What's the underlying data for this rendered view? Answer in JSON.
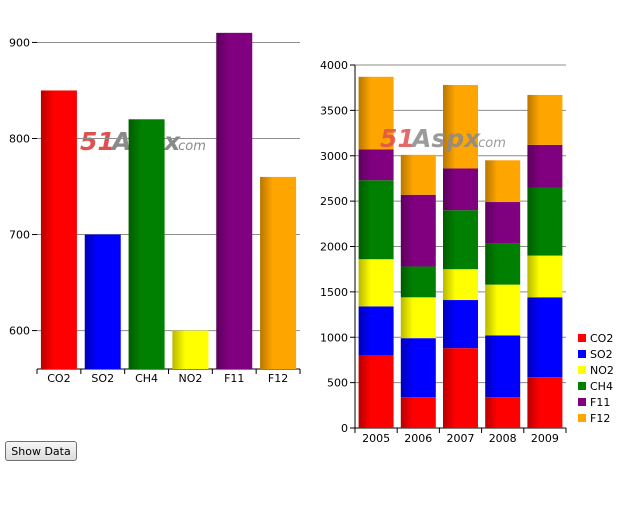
{
  "watermark": {
    "text_51": "51",
    "text_aspx": "Aspx",
    "text_com": ".com"
  },
  "button": {
    "show_data_label": "Show Data"
  },
  "colors": {
    "CO2": "#ff0000",
    "SO2": "#0000ff",
    "CH4": "#008000",
    "NO2": "#ffff00",
    "F11": "#800080",
    "F12": "#ffa500"
  },
  "chart_data": [
    {
      "type": "bar",
      "categories": [
        "CO2",
        "SO2",
        "CH4",
        "NO2",
        "F11",
        "F12"
      ],
      "values": [
        850,
        700,
        820,
        600,
        910,
        760
      ],
      "yticks": [
        600,
        700,
        800,
        900
      ],
      "ylim": [
        560,
        990
      ],
      "grid": true,
      "legend": "none"
    },
    {
      "type": "bar",
      "stacked": true,
      "categories": [
        "2005",
        "2006",
        "2007",
        "2008",
        "2009"
      ],
      "series": [
        {
          "name": "CO2",
          "values": [
            800,
            340,
            880,
            340,
            560
          ]
        },
        {
          "name": "SO2",
          "values": [
            540,
            650,
            530,
            680,
            880
          ]
        },
        {
          "name": "NO2",
          "values": [
            520,
            450,
            340,
            560,
            460
          ]
        },
        {
          "name": "CH4",
          "values": [
            870,
            340,
            650,
            450,
            750
          ]
        },
        {
          "name": "F11",
          "values": [
            340,
            790,
            460,
            460,
            470
          ]
        },
        {
          "name": "F12",
          "values": [
            800,
            440,
            920,
            460,
            550
          ]
        }
      ],
      "yticks": [
        0,
        500,
        1000,
        1500,
        2000,
        2500,
        3000,
        3500,
        4000
      ],
      "ylim": [
        0,
        4000
      ],
      "grid": true,
      "legend_entries": [
        "CO2",
        "SO2",
        "NO2",
        "CH4",
        "F11",
        "F12"
      ],
      "legend": "right-bottom"
    }
  ]
}
